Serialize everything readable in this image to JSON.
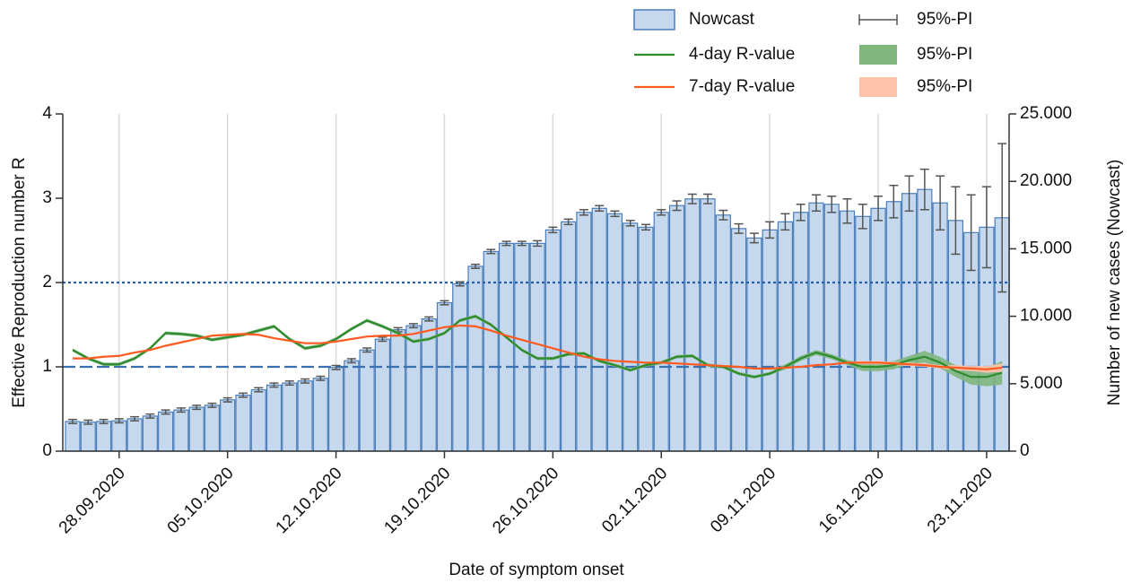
{
  "chart_data": {
    "type": "bar_line",
    "x_label": "Date of symptom onset",
    "y_label": "Effective Reproduction number R",
    "y2_label": "Number of new cases (Nowcast)",
    "categories": [
      null,
      null,
      null,
      "28.09.2020",
      null,
      null,
      null,
      null,
      null,
      null,
      "05.10.2020",
      null,
      null,
      null,
      null,
      null,
      null,
      "12.10.2020",
      null,
      null,
      null,
      null,
      null,
      null,
      "19.10.2020",
      null,
      null,
      null,
      null,
      null,
      null,
      "26.10.2020",
      null,
      null,
      null,
      null,
      null,
      null,
      "02.11.2020",
      null,
      null,
      null,
      null,
      null,
      null,
      "09.11.2020",
      null,
      null,
      null,
      null,
      null,
      null,
      "16.11.2020",
      null,
      null,
      null,
      null,
      null,
      null,
      "23.11.2020",
      null
    ],
    "ylim": [
      0,
      4
    ],
    "yticks": [
      0,
      1,
      2,
      3,
      4
    ],
    "y2lim": [
      0,
      25000
    ],
    "y2ticks": [
      0,
      {
        "value": 5000,
        "label": "5.000"
      },
      {
        "value": 10000,
        "label": "10.000"
      },
      {
        "value": 15000,
        "label": "15.000"
      },
      {
        "value": 20000,
        "label": "20.000"
      },
      {
        "value": 25000,
        "label": "25.000"
      }
    ],
    "x_grid": true,
    "reference_lines": [
      {
        "value": 1,
        "style": "dashed",
        "color": "#3a6fb0"
      },
      {
        "value": 2,
        "style": "dotted",
        "color": "#2a5fa8"
      }
    ],
    "series": [
      {
        "name": "Nowcast",
        "kind": "bar",
        "axis": "y2",
        "color": "#c6d8ee",
        "edge_color": "#4a7ebb",
        "values": [
          2200,
          2150,
          2200,
          2250,
          2400,
          2600,
          2900,
          3050,
          3250,
          3400,
          3800,
          4150,
          4550,
          4900,
          5050,
          5200,
          5400,
          6200,
          6700,
          7500,
          8300,
          9000,
          9300,
          9800,
          11000,
          12400,
          13700,
          14800,
          15400,
          15400,
          15400,
          16400,
          17000,
          17700,
          18000,
          17600,
          16900,
          16600,
          17700,
          18200,
          18700,
          18700,
          17500,
          16500,
          15800,
          16400,
          17000,
          17700,
          18400,
          18300,
          17800,
          17400,
          18000,
          18500,
          19100,
          19400,
          18400,
          17100,
          16200,
          16600,
          17300
        ],
        "errors": [
          150,
          150,
          150,
          150,
          150,
          150,
          150,
          150,
          150,
          150,
          150,
          150,
          150,
          150,
          150,
          150,
          150,
          150,
          150,
          150,
          150,
          150,
          150,
          150,
          150,
          150,
          150,
          150,
          150,
          150,
          200,
          200,
          200,
          200,
          200,
          200,
          200,
          200,
          200,
          350,
          350,
          350,
          350,
          350,
          350,
          600,
          600,
          600,
          600,
          600,
          900,
          900,
          900,
          1200,
          1300,
          1500,
          2000,
          2500,
          2800,
          3000,
          5500
        ],
        "error_name": "95%-PI",
        "error_color": "#555555"
      },
      {
        "name": "4-day R-value",
        "kind": "line",
        "color": "#2e8b2e",
        "values": [
          1.2,
          1.1,
          1.03,
          1.03,
          1.1,
          1.22,
          1.4,
          1.39,
          1.37,
          1.32,
          1.35,
          1.38,
          1.43,
          1.48,
          1.33,
          1.22,
          1.25,
          1.33,
          1.45,
          1.55,
          1.48,
          1.4,
          1.3,
          1.33,
          1.4,
          1.55,
          1.6,
          1.5,
          1.35,
          1.2,
          1.1,
          1.1,
          1.15,
          1.16,
          1.07,
          1.02,
          0.96,
          1.02,
          1.05,
          1.12,
          1.13,
          1.02,
          1.0,
          0.92,
          0.88,
          0.92,
          1.0,
          1.1,
          1.17,
          1.12,
          1.05,
          1.0,
          1.0,
          1.02,
          1.08,
          1.12,
          1.05,
          0.95,
          0.88,
          0.88,
          0.93
        ],
        "band": [
          0.02,
          0.02,
          0.02,
          0.02,
          0.02,
          0.02,
          0.02,
          0.02,
          0.02,
          0.02,
          0.02,
          0.02,
          0.02,
          0.02,
          0.02,
          0.02,
          0.02,
          0.02,
          0.02,
          0.02,
          0.02,
          0.02,
          0.02,
          0.02,
          0.02,
          0.02,
          0.02,
          0.02,
          0.02,
          0.02,
          0.02,
          0.02,
          0.02,
          0.02,
          0.02,
          0.02,
          0.02,
          0.02,
          0.02,
          0.02,
          0.02,
          0.02,
          0.02,
          0.02,
          0.02,
          0.02,
          0.03,
          0.03,
          0.03,
          0.03,
          0.03,
          0.05,
          0.05,
          0.05,
          0.05,
          0.07,
          0.07,
          0.07,
          0.09,
          0.11,
          0.14
        ],
        "band_name": "95%-PI",
        "band_color": "#7fb77f"
      },
      {
        "name": "7-day R-value",
        "kind": "line",
        "color": "#ff5a1f",
        "values": [
          1.1,
          1.1,
          1.12,
          1.13,
          1.17,
          1.2,
          1.25,
          1.29,
          1.33,
          1.37,
          1.38,
          1.39,
          1.38,
          1.34,
          1.31,
          1.28,
          1.28,
          1.3,
          1.33,
          1.36,
          1.37,
          1.37,
          1.39,
          1.43,
          1.47,
          1.49,
          1.48,
          1.43,
          1.37,
          1.32,
          1.27,
          1.22,
          1.17,
          1.12,
          1.09,
          1.07,
          1.06,
          1.05,
          1.05,
          1.04,
          1.03,
          1.02,
          1.01,
          1.0,
          0.98,
          0.98,
          0.99,
          1.0,
          1.02,
          1.03,
          1.05,
          1.05,
          1.05,
          1.04,
          1.03,
          1.02,
          1.0,
          0.99,
          0.98,
          0.97,
          0.99
        ],
        "band": [
          0.01,
          0.01,
          0.01,
          0.01,
          0.01,
          0.01,
          0.01,
          0.01,
          0.01,
          0.01,
          0.01,
          0.01,
          0.01,
          0.01,
          0.01,
          0.01,
          0.01,
          0.01,
          0.01,
          0.01,
          0.01,
          0.01,
          0.01,
          0.01,
          0.01,
          0.01,
          0.01,
          0.01,
          0.01,
          0.01,
          0.01,
          0.01,
          0.01,
          0.01,
          0.01,
          0.01,
          0.01,
          0.01,
          0.01,
          0.01,
          0.01,
          0.01,
          0.01,
          0.01,
          0.01,
          0.01,
          0.01,
          0.01,
          0.01,
          0.01,
          0.01,
          0.02,
          0.02,
          0.02,
          0.02,
          0.02,
          0.02,
          0.03,
          0.03,
          0.04,
          0.05
        ],
        "band_name": "95%-PI",
        "band_color": "#ffc3ab"
      }
    ]
  }
}
